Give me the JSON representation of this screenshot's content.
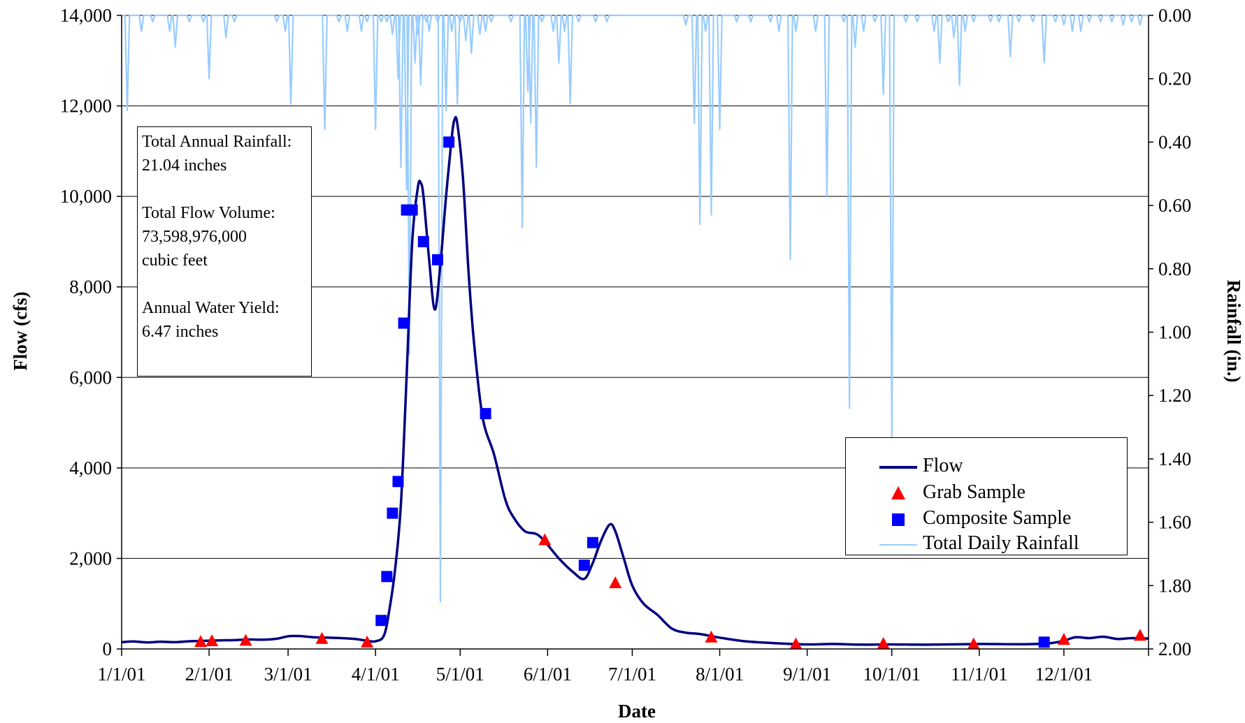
{
  "chart_data": {
    "type": "line",
    "xlabel": "Date",
    "ylabel_left": "Flow (cfs)",
    "ylabel_right": "Rainfall (in.)",
    "x_range": [
      "2001-01-01",
      "2001-12-31"
    ],
    "x_ticks": [
      "1/1/01",
      "2/1/01",
      "3/1/01",
      "4/1/01",
      "5/1/01",
      "6/1/01",
      "7/1/01",
      "8/1/01",
      "9/1/01",
      "10/1/01",
      "11/1/01",
      "12/1/01"
    ],
    "y_left": {
      "min": 0,
      "max": 14000,
      "step": 2000,
      "ticks": [
        "0",
        "2,000",
        "4,000",
        "6,000",
        "8,000",
        "10,000",
        "12,000",
        "14,000"
      ]
    },
    "y_right": {
      "min": 0,
      "max": 2.0,
      "reversed": true,
      "ticks": [
        "0.00",
        "0.20",
        "0.40",
        "0.60",
        "0.80",
        "1.00",
        "1.20",
        "1.40",
        "1.60",
        "1.80",
        "2.00"
      ]
    },
    "grid": "horizontal",
    "colors": {
      "flow": "#000080",
      "grab": "#ff0000",
      "composite": "#0000ff",
      "rainfall": "#99ccff"
    },
    "legend": {
      "position": "lower-right",
      "entries": [
        "Flow",
        "Grab Sample",
        "Composite Sample",
        "Total Daily Rainfall"
      ]
    },
    "annotation": {
      "position": "upper-left",
      "lines": [
        "Total Annual Rainfall:",
        "21.04 inches",
        "",
        "Total Flow Volume:",
        "73,598,976,000",
        "cubic feet",
        "",
        "Annual Water Yield:",
        "6.47 inches"
      ]
    },
    "series": [
      {
        "name": "Flow",
        "type": "line",
        "points": [
          [
            "2001-01-01",
            150
          ],
          [
            "2001-01-05",
            165
          ],
          [
            "2001-01-10",
            145
          ],
          [
            "2001-01-15",
            160
          ],
          [
            "2001-01-20",
            150
          ],
          [
            "2001-01-25",
            170
          ],
          [
            "2001-01-31",
            180
          ],
          [
            "2001-02-05",
            190
          ],
          [
            "2001-02-10",
            195
          ],
          [
            "2001-02-15",
            210
          ],
          [
            "2001-02-20",
            205
          ],
          [
            "2001-02-25",
            225
          ],
          [
            "2001-03-01",
            280
          ],
          [
            "2001-03-05",
            285
          ],
          [
            "2001-03-10",
            260
          ],
          [
            "2001-03-15",
            250
          ],
          [
            "2001-03-20",
            240
          ],
          [
            "2001-03-25",
            220
          ],
          [
            "2001-03-29",
            180
          ],
          [
            "2001-04-01",
            170
          ],
          [
            "2001-04-04",
            300
          ],
          [
            "2001-04-06",
            900
          ],
          [
            "2001-04-08",
            1800
          ],
          [
            "2001-04-10",
            3200
          ],
          [
            "2001-04-12",
            6000
          ],
          [
            "2001-04-14",
            9000
          ],
          [
            "2001-04-16",
            10200
          ],
          [
            "2001-04-17",
            10300
          ],
          [
            "2001-04-18",
            10000
          ],
          [
            "2001-04-20",
            8600
          ],
          [
            "2001-04-22",
            7500
          ],
          [
            "2001-04-24",
            8500
          ],
          [
            "2001-04-26",
            10000
          ],
          [
            "2001-04-28",
            11300
          ],
          [
            "2001-04-29",
            11700
          ],
          [
            "2001-04-30",
            11600
          ],
          [
            "2001-05-02",
            10400
          ],
          [
            "2001-05-04",
            8300
          ],
          [
            "2001-05-06",
            6700
          ],
          [
            "2001-05-09",
            5100
          ],
          [
            "2001-05-13",
            4300
          ],
          [
            "2001-05-17",
            3300
          ],
          [
            "2001-05-20",
            2900
          ],
          [
            "2001-05-24",
            2600
          ],
          [
            "2001-05-29",
            2500
          ],
          [
            "2001-06-05",
            2000
          ],
          [
            "2001-06-10",
            1700
          ],
          [
            "2001-06-14",
            1550
          ],
          [
            "2001-06-17",
            1900
          ],
          [
            "2001-06-20",
            2400
          ],
          [
            "2001-06-23",
            2750
          ],
          [
            "2001-06-25",
            2600
          ],
          [
            "2001-06-28",
            2000
          ],
          [
            "2001-07-01",
            1400
          ],
          [
            "2001-07-05",
            1000
          ],
          [
            "2001-07-10",
            750
          ],
          [
            "2001-07-15",
            450
          ],
          [
            "2001-07-20",
            360
          ],
          [
            "2001-07-25",
            330
          ],
          [
            "2001-08-01",
            250
          ],
          [
            "2001-08-10",
            170
          ],
          [
            "2001-08-20",
            130
          ],
          [
            "2001-09-01",
            100
          ],
          [
            "2001-09-10",
            110
          ],
          [
            "2001-09-20",
            95
          ],
          [
            "2001-10-01",
            100
          ],
          [
            "2001-10-15",
            95
          ],
          [
            "2001-11-01",
            110
          ],
          [
            "2001-11-15",
            105
          ],
          [
            "2001-11-25",
            120
          ],
          [
            "2001-12-01",
            180
          ],
          [
            "2001-12-05",
            260
          ],
          [
            "2001-12-10",
            240
          ],
          [
            "2001-12-15",
            270
          ],
          [
            "2001-12-20",
            220
          ],
          [
            "2001-12-25",
            240
          ],
          [
            "2001-12-31",
            230
          ]
        ]
      },
      {
        "name": "Grab Sample",
        "type": "scatter",
        "marker": "triangle",
        "points": [
          [
            "2001-01-29",
            150
          ],
          [
            "2001-02-02",
            170
          ],
          [
            "2001-02-14",
            180
          ],
          [
            "2001-03-13",
            220
          ],
          [
            "2001-03-29",
            140
          ],
          [
            "2001-05-31",
            2400
          ],
          [
            "2001-06-25",
            1450
          ],
          [
            "2001-07-29",
            250
          ],
          [
            "2001-08-28",
            100
          ],
          [
            "2001-09-28",
            110
          ],
          [
            "2001-10-30",
            100
          ],
          [
            "2001-12-01",
            200
          ],
          [
            "2001-12-28",
            290
          ]
        ]
      },
      {
        "name": "Composite Sample",
        "type": "scatter",
        "marker": "square",
        "points": [
          [
            "2001-04-03",
            630
          ],
          [
            "2001-04-05",
            1600
          ],
          [
            "2001-04-07",
            3000
          ],
          [
            "2001-04-09",
            3700
          ],
          [
            "2001-04-11",
            7200
          ],
          [
            "2001-04-12",
            9700
          ],
          [
            "2001-04-14",
            9700
          ],
          [
            "2001-04-18",
            9000
          ],
          [
            "2001-04-23",
            8600
          ],
          [
            "2001-04-27",
            11200
          ],
          [
            "2001-05-10",
            5200
          ],
          [
            "2001-06-14",
            1850
          ],
          [
            "2001-06-17",
            2350
          ],
          [
            "2001-11-24",
            150
          ]
        ]
      },
      {
        "name": "Total Daily Rainfall",
        "type": "line",
        "axis": "right",
        "points": [
          [
            "2001-01-03",
            0.3
          ],
          [
            "2001-01-08",
            0.05
          ],
          [
            "2001-01-12",
            0.02
          ],
          [
            "2001-01-18",
            0.05
          ],
          [
            "2001-01-20",
            0.1
          ],
          [
            "2001-01-25",
            0.02
          ],
          [
            "2001-01-30",
            0.02
          ],
          [
            "2001-02-01",
            0.2
          ],
          [
            "2001-02-07",
            0.07
          ],
          [
            "2001-02-10",
            0.02
          ],
          [
            "2001-02-25",
            0.02
          ],
          [
            "2001-02-28",
            0.05
          ],
          [
            "2001-03-02",
            0.28
          ],
          [
            "2001-03-14",
            0.36
          ],
          [
            "2001-03-19",
            0.02
          ],
          [
            "2001-03-22",
            0.05
          ],
          [
            "2001-03-27",
            0.05
          ],
          [
            "2001-03-29",
            0.02
          ],
          [
            "2001-04-01",
            0.36
          ],
          [
            "2001-04-03",
            0.02
          ],
          [
            "2001-04-05",
            0.02
          ],
          [
            "2001-04-07",
            0.06
          ],
          [
            "2001-04-09",
            0.2
          ],
          [
            "2001-04-10",
            0.48
          ],
          [
            "2001-04-12",
            0.55
          ],
          [
            "2001-04-13",
            1.07
          ],
          [
            "2001-04-15",
            0.15
          ],
          [
            "2001-04-16",
            0.06
          ],
          [
            "2001-04-17",
            0.22
          ],
          [
            "2001-04-19",
            0.02
          ],
          [
            "2001-04-20",
            0.05
          ],
          [
            "2001-04-23",
            0.02
          ],
          [
            "2001-04-24",
            1.85
          ],
          [
            "2001-04-26",
            0.3
          ],
          [
            "2001-04-28",
            0.05
          ],
          [
            "2001-04-30",
            0.28
          ],
          [
            "2001-05-01",
            0.02
          ],
          [
            "2001-05-03",
            0.08
          ],
          [
            "2001-05-05",
            0.12
          ],
          [
            "2001-05-08",
            0.06
          ],
          [
            "2001-05-10",
            0.05
          ],
          [
            "2001-05-12",
            0.02
          ],
          [
            "2001-05-19",
            0.02
          ],
          [
            "2001-05-23",
            0.67
          ],
          [
            "2001-05-25",
            0.24
          ],
          [
            "2001-05-26",
            0.34
          ],
          [
            "2001-05-28",
            0.48
          ],
          [
            "2001-05-30",
            0.02
          ],
          [
            "2001-06-03",
            0.05
          ],
          [
            "2001-06-05",
            0.15
          ],
          [
            "2001-06-07",
            0.05
          ],
          [
            "2001-06-09",
            0.28
          ],
          [
            "2001-06-12",
            0.02
          ],
          [
            "2001-06-18",
            0.02
          ],
          [
            "2001-06-22",
            0.02
          ],
          [
            "2001-07-20",
            0.03
          ],
          [
            "2001-07-23",
            0.34
          ],
          [
            "2001-07-25",
            0.66
          ],
          [
            "2001-07-27",
            0.05
          ],
          [
            "2001-07-29",
            0.63
          ],
          [
            "2001-08-01",
            0.36
          ],
          [
            "2001-08-07",
            0.02
          ],
          [
            "2001-08-12",
            0.02
          ],
          [
            "2001-08-19",
            0.02
          ],
          [
            "2001-08-22",
            0.05
          ],
          [
            "2001-08-26",
            0.77
          ],
          [
            "2001-08-28",
            0.05
          ],
          [
            "2001-09-04",
            0.05
          ],
          [
            "2001-09-08",
            0.57
          ],
          [
            "2001-09-14",
            0.02
          ],
          [
            "2001-09-16",
            1.24
          ],
          [
            "2001-09-18",
            0.1
          ],
          [
            "2001-09-21",
            0.05
          ],
          [
            "2001-09-25",
            0.02
          ],
          [
            "2001-09-28",
            0.25
          ],
          [
            "2001-10-01",
            1.33
          ],
          [
            "2001-10-06",
            0.02
          ],
          [
            "2001-10-10",
            0.02
          ],
          [
            "2001-10-16",
            0.05
          ],
          [
            "2001-10-18",
            0.15
          ],
          [
            "2001-10-21",
            0.02
          ],
          [
            "2001-10-23",
            0.07
          ],
          [
            "2001-10-25",
            0.22
          ],
          [
            "2001-10-27",
            0.05
          ],
          [
            "2001-10-30",
            0.02
          ],
          [
            "2001-11-05",
            0.02
          ],
          [
            "2001-11-08",
            0.02
          ],
          [
            "2001-11-12",
            0.13
          ],
          [
            "2001-11-15",
            0.02
          ],
          [
            "2001-11-20",
            0.02
          ],
          [
            "2001-11-24",
            0.15
          ],
          [
            "2001-11-28",
            0.02
          ],
          [
            "2001-12-01",
            0.03
          ],
          [
            "2001-12-04",
            0.05
          ],
          [
            "2001-12-07",
            0.05
          ],
          [
            "2001-12-10",
            0.02
          ],
          [
            "2001-12-14",
            0.02
          ],
          [
            "2001-12-18",
            0.02
          ],
          [
            "2001-12-22",
            0.03
          ],
          [
            "2001-12-25",
            0.02
          ],
          [
            "2001-12-28",
            0.03
          ]
        ]
      }
    ]
  }
}
